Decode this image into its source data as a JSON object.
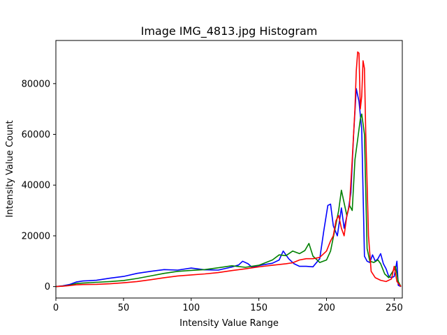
{
  "chart_data": {
    "type": "line",
    "title": "Image IMG_4813.jpg Histogram",
    "xlabel": "Intensity Value Range",
    "ylabel": "Intensity Value Count",
    "xlim": [
      0,
      256
    ],
    "ylim": [
      -4500,
      97000
    ],
    "grid": false,
    "xticks": [
      0,
      50,
      100,
      150,
      200,
      250
    ],
    "yticks": [
      0,
      20000,
      40000,
      60000,
      80000
    ],
    "xtick_labels": [
      "0",
      "50",
      "100",
      "150",
      "200",
      "250"
    ],
    "ytick_labels": [
      "0",
      "20000",
      "40000",
      "60000",
      "80000"
    ],
    "series": [
      {
        "color": "#0000ff",
        "points": [
          [
            0,
            0
          ],
          [
            5,
            300
          ],
          [
            10,
            800
          ],
          [
            15,
            1800
          ],
          [
            20,
            2200
          ],
          [
            30,
            2500
          ],
          [
            40,
            3300
          ],
          [
            50,
            4000
          ],
          [
            60,
            5200
          ],
          [
            70,
            6000
          ],
          [
            80,
            6700
          ],
          [
            90,
            6500
          ],
          [
            100,
            7300
          ],
          [
            110,
            6600
          ],
          [
            120,
            6500
          ],
          [
            130,
            7700
          ],
          [
            135,
            8500
          ],
          [
            138,
            10000
          ],
          [
            142,
            9000
          ],
          [
            145,
            7600
          ],
          [
            150,
            8300
          ],
          [
            160,
            9200
          ],
          [
            165,
            10500
          ],
          [
            168,
            14000
          ],
          [
            172,
            11000
          ],
          [
            176,
            9000
          ],
          [
            180,
            8000
          ],
          [
            185,
            8000
          ],
          [
            190,
            7800
          ],
          [
            195,
            11000
          ],
          [
            198,
            22000
          ],
          [
            201,
            32000
          ],
          [
            203,
            32500
          ],
          [
            205,
            24000
          ],
          [
            208,
            20000
          ],
          [
            211,
            31000
          ],
          [
            213,
            23000
          ],
          [
            216,
            30000
          ],
          [
            218,
            37000
          ],
          [
            220,
            60000
          ],
          [
            222,
            78000
          ],
          [
            224,
            73000
          ],
          [
            226,
            62000
          ],
          [
            228,
            12000
          ],
          [
            230,
            10000
          ],
          [
            232,
            9500
          ],
          [
            234,
            12500
          ],
          [
            236,
            10000
          ],
          [
            238,
            11000
          ],
          [
            240,
            13000
          ],
          [
            242,
            9000
          ],
          [
            244,
            7000
          ],
          [
            246,
            4000
          ],
          [
            248,
            3500
          ],
          [
            250,
            4000
          ],
          [
            252,
            10000
          ],
          [
            253,
            500
          ],
          [
            255,
            0
          ]
        ]
      },
      {
        "color": "#008000",
        "points": [
          [
            0,
            0
          ],
          [
            5,
            200
          ],
          [
            10,
            500
          ],
          [
            15,
            1200
          ],
          [
            20,
            1400
          ],
          [
            30,
            1700
          ],
          [
            40,
            2000
          ],
          [
            50,
            2400
          ],
          [
            60,
            3200
          ],
          [
            70,
            4200
          ],
          [
            80,
            5200
          ],
          [
            90,
            6000
          ],
          [
            100,
            6400
          ],
          [
            110,
            6700
          ],
          [
            120,
            7400
          ],
          [
            130,
            8200
          ],
          [
            140,
            7600
          ],
          [
            150,
            8400
          ],
          [
            160,
            10500
          ],
          [
            165,
            12500
          ],
          [
            170,
            12200
          ],
          [
            175,
            14000
          ],
          [
            180,
            13000
          ],
          [
            184,
            14200
          ],
          [
            187,
            17000
          ],
          [
            190,
            12000
          ],
          [
            195,
            9500
          ],
          [
            200,
            10500
          ],
          [
            203,
            14000
          ],
          [
            206,
            22000
          ],
          [
            209,
            30000
          ],
          [
            211,
            38000
          ],
          [
            213,
            33000
          ],
          [
            215,
            28000
          ],
          [
            217,
            32000
          ],
          [
            219,
            30000
          ],
          [
            221,
            50000
          ],
          [
            223,
            58000
          ],
          [
            225,
            66000
          ],
          [
            226,
            68000
          ],
          [
            228,
            60000
          ],
          [
            230,
            15000
          ],
          [
            232,
            10000
          ],
          [
            235,
            9500
          ],
          [
            238,
            10500
          ],
          [
            240,
            9000
          ],
          [
            243,
            5000
          ],
          [
            246,
            3500
          ],
          [
            249,
            6000
          ],
          [
            251,
            8000
          ],
          [
            253,
            2000
          ],
          [
            255,
            0
          ]
        ]
      },
      {
        "color": "#ff0000",
        "points": [
          [
            0,
            0
          ],
          [
            5,
            150
          ],
          [
            10,
            400
          ],
          [
            15,
            700
          ],
          [
            20,
            800
          ],
          [
            30,
            900
          ],
          [
            40,
            1100
          ],
          [
            50,
            1500
          ],
          [
            60,
            2000
          ],
          [
            70,
            2700
          ],
          [
            80,
            3500
          ],
          [
            90,
            4200
          ],
          [
            100,
            4600
          ],
          [
            110,
            5000
          ],
          [
            120,
            5500
          ],
          [
            130,
            6300
          ],
          [
            140,
            7000
          ],
          [
            150,
            7800
          ],
          [
            160,
            8400
          ],
          [
            170,
            9000
          ],
          [
            175,
            9400
          ],
          [
            180,
            10500
          ],
          [
            185,
            11000
          ],
          [
            190,
            11000
          ],
          [
            195,
            11500
          ],
          [
            200,
            14000
          ],
          [
            203,
            18000
          ],
          [
            205,
            20000
          ],
          [
            207,
            26000
          ],
          [
            209,
            28000
          ],
          [
            211,
            23000
          ],
          [
            213,
            20000
          ],
          [
            215,
            28000
          ],
          [
            217,
            32000
          ],
          [
            219,
            50000
          ],
          [
            221,
            70000
          ],
          [
            222,
            85000
          ],
          [
            223,
            92500
          ],
          [
            224,
            92000
          ],
          [
            225,
            70000
          ],
          [
            226,
            75000
          ],
          [
            227,
            89000
          ],
          [
            228,
            86000
          ],
          [
            229,
            60000
          ],
          [
            231,
            20000
          ],
          [
            233,
            6000
          ],
          [
            236,
            3500
          ],
          [
            240,
            2500
          ],
          [
            244,
            2000
          ],
          [
            248,
            3000
          ],
          [
            250,
            8000
          ],
          [
            252,
            2000
          ],
          [
            255,
            0
          ]
        ]
      }
    ]
  }
}
